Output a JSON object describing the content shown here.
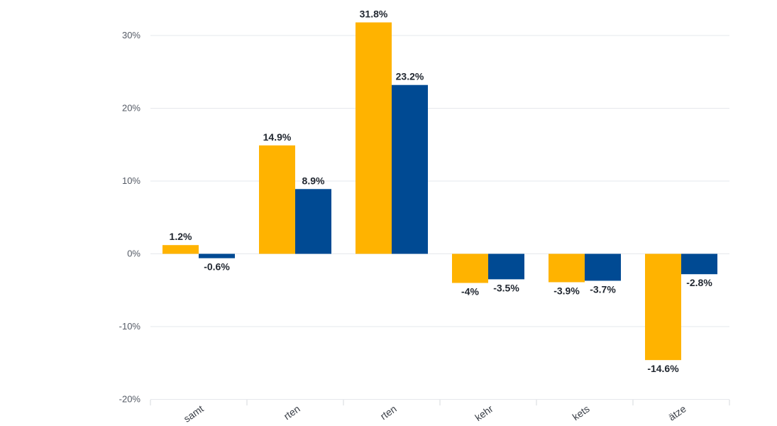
{
  "chart_data": {
    "type": "bar",
    "title": "",
    "xlabel": "",
    "ylabel": "",
    "categories": [
      "samt",
      "rten",
      "rten",
      "kehr",
      "kets",
      "ätze"
    ],
    "series": [
      {
        "values": [
          1.2,
          14.9,
          31.8,
          -4,
          -3.9,
          -14.6
        ],
        "color": "#FFB300"
      },
      {
        "values": [
          -0.6,
          8.9,
          23.2,
          -3.5,
          -3.7,
          -2.8
        ],
        "color": "#004A93"
      }
    ],
    "data_labels": [
      [
        "1.2%",
        "14.9%",
        "31.8%",
        "-4%",
        "-3.9%",
        "-14.6%"
      ],
      [
        "-0.6%",
        "8.9%",
        "23.2%",
        "-3.5%",
        "-3.7%",
        "-2.8%"
      ]
    ],
    "y_ticks": [
      30,
      20,
      10,
      0,
      -10,
      -20
    ],
    "y_tick_labels": [
      "30%",
      "20%",
      "10%",
      "0%",
      "-10%",
      "-20%"
    ],
    "ylim": [
      -20,
      30
    ],
    "grid": true,
    "legend": "none"
  }
}
